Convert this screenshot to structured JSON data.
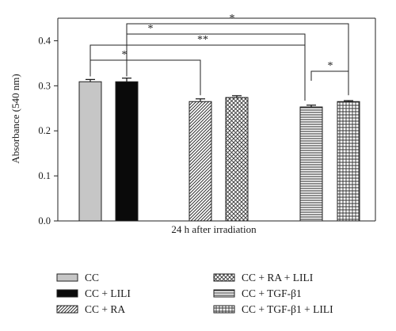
{
  "chart_data": {
    "type": "bar",
    "categories": [
      "CC",
      "CC + LILI",
      "CC + RA",
      "CC + RA + LILI",
      "CC + TGF-β1",
      "CC + TGF-β1 + LILI"
    ],
    "values": [
      0.309,
      0.309,
      0.265,
      0.274,
      0.253,
      0.265
    ],
    "errors": [
      0.005,
      0.008,
      0.006,
      0.004,
      0.004,
      0.002
    ],
    "xlabel": "24 h after irradiation",
    "ylabel": "Absorbance (540 nm)",
    "ylim": [
      0.0,
      0.45
    ],
    "yticks": [
      "0.0",
      "0.1",
      "0.2",
      "0.3",
      "0.4"
    ],
    "grid": false,
    "legend_position": "bottom",
    "significance": [
      {
        "from": "CC",
        "to": "CC + RA",
        "label": "*"
      },
      {
        "from": "CC",
        "to": "CC + TGF-β1",
        "label": "**"
      },
      {
        "from": "CC + LILI",
        "to": "CC + TGF-β1 + LILI",
        "label": "*"
      },
      {
        "from": "CC + LILI",
        "to": "CC + TGF-β1 + LILI",
        "label": "*"
      },
      {
        "from": "CC + TGF-β1",
        "to": "CC + TGF-β1 + LILI",
        "label": "*"
      }
    ],
    "fills": [
      "light-gray",
      "black",
      "diagonal-hatch",
      "crosshatch",
      "horizontal-lines",
      "grid"
    ]
  }
}
